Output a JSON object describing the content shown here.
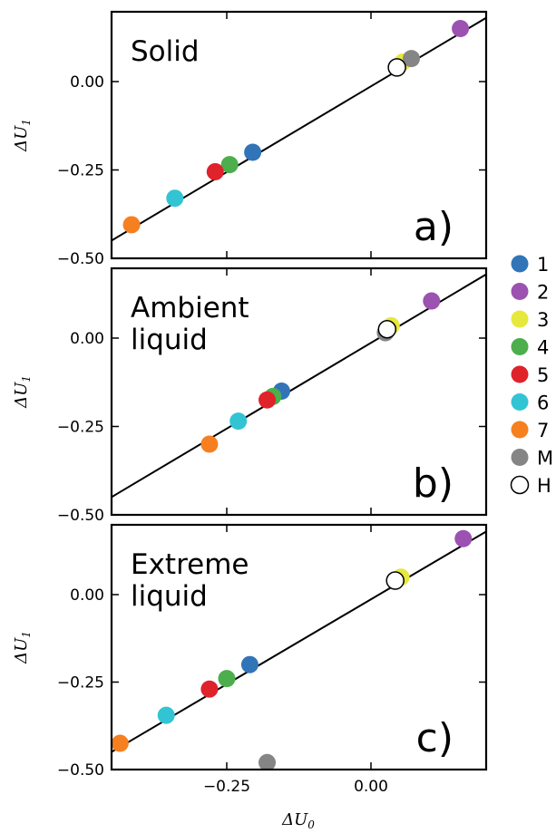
{
  "chart_data": [
    {
      "type": "scatter",
      "panel_title": [
        "Solid"
      ],
      "tag": "a)",
      "ylabel": "ΔU",
      "ylabel_sub": "1",
      "xlim": [
        -0.45,
        0.22
      ],
      "ylim": [
        -0.5,
        0.2
      ],
      "yticks": [
        "0.00",
        "−0.25",
        "−0.50"
      ],
      "fit_line": [
        [
          -0.45,
          -0.45
        ],
        [
          0.22,
          0.2
        ]
      ],
      "points": [
        {
          "series": "1",
          "x": -0.205,
          "y": -0.2
        },
        {
          "series": "2",
          "x": 0.155,
          "y": 0.15
        },
        {
          "series": "3",
          "x": 0.055,
          "y": 0.055
        },
        {
          "series": "4",
          "x": -0.245,
          "y": -0.235
        },
        {
          "series": "5",
          "x": -0.27,
          "y": -0.255
        },
        {
          "series": "6",
          "x": -0.34,
          "y": -0.33
        },
        {
          "series": "7",
          "x": -0.415,
          "y": -0.405
        },
        {
          "series": "M",
          "x": 0.07,
          "y": 0.065
        },
        {
          "series": "H",
          "x": 0.045,
          "y": 0.04
        }
      ]
    },
    {
      "type": "scatter",
      "panel_title": [
        "Ambient",
        "liquid"
      ],
      "tag": "b)",
      "ylabel": "ΔU",
      "ylabel_sub": "1",
      "xlim": [
        -0.45,
        0.22
      ],
      "ylim": [
        -0.5,
        0.2
      ],
      "yticks": [
        "0.00",
        "−0.25",
        "−0.50"
      ],
      "fit_line": [
        [
          -0.45,
          -0.45
        ],
        [
          0.22,
          0.2
        ]
      ],
      "points": [
        {
          "series": "1",
          "x": -0.155,
          "y": -0.15
        },
        {
          "series": "2",
          "x": 0.105,
          "y": 0.105
        },
        {
          "series": "3",
          "x": 0.035,
          "y": 0.035
        },
        {
          "series": "4",
          "x": -0.17,
          "y": -0.165
        },
        {
          "series": "5",
          "x": -0.18,
          "y": -0.175
        },
        {
          "series": "6",
          "x": -0.23,
          "y": -0.235
        },
        {
          "series": "7",
          "x": -0.28,
          "y": -0.3
        },
        {
          "series": "M",
          "x": 0.025,
          "y": 0.015
        },
        {
          "series": "H",
          "x": 0.028,
          "y": 0.025
        }
      ]
    },
    {
      "type": "scatter",
      "panel_title": [
        "Extreme",
        "liquid"
      ],
      "tag": "c)",
      "ylabel": "ΔU",
      "ylabel_sub": "1",
      "xlabel": "ΔU",
      "xlabel_sub": "0",
      "xlim": [
        -0.45,
        0.22
      ],
      "ylim": [
        -0.5,
        0.2
      ],
      "xticks": [
        "−0.25",
        "0.00"
      ],
      "yticks": [
        "0.00",
        "−0.25",
        "−0.50"
      ],
      "fit_line": [
        [
          -0.45,
          -0.45
        ],
        [
          0.22,
          0.2
        ]
      ],
      "points": [
        {
          "series": "1",
          "x": -0.21,
          "y": -0.2
        },
        {
          "series": "2",
          "x": 0.16,
          "y": 0.16
        },
        {
          "series": "3",
          "x": 0.052,
          "y": 0.05
        },
        {
          "series": "4",
          "x": -0.25,
          "y": -0.24
        },
        {
          "series": "5",
          "x": -0.28,
          "y": -0.27
        },
        {
          "series": "6",
          "x": -0.355,
          "y": -0.345
        },
        {
          "series": "7",
          "x": -0.435,
          "y": -0.425
        },
        {
          "series": "M",
          "x": -0.18,
          "y": -0.48
        },
        {
          "series": "H",
          "x": 0.042,
          "y": 0.04
        }
      ]
    }
  ],
  "legend": [
    {
      "label": "1",
      "color": "#3274b8"
    },
    {
      "label": "2",
      "color": "#9b52b0"
    },
    {
      "label": "3",
      "color": "#e6e93b"
    },
    {
      "label": "4",
      "color": "#4cae4c"
    },
    {
      "label": "5",
      "color": "#e0222b"
    },
    {
      "label": "6",
      "color": "#33c4d4"
    },
    {
      "label": "7",
      "color": "#f6801f"
    },
    {
      "label": "M",
      "color": "#858585"
    },
    {
      "label": "H",
      "color": "#ffffff"
    }
  ]
}
